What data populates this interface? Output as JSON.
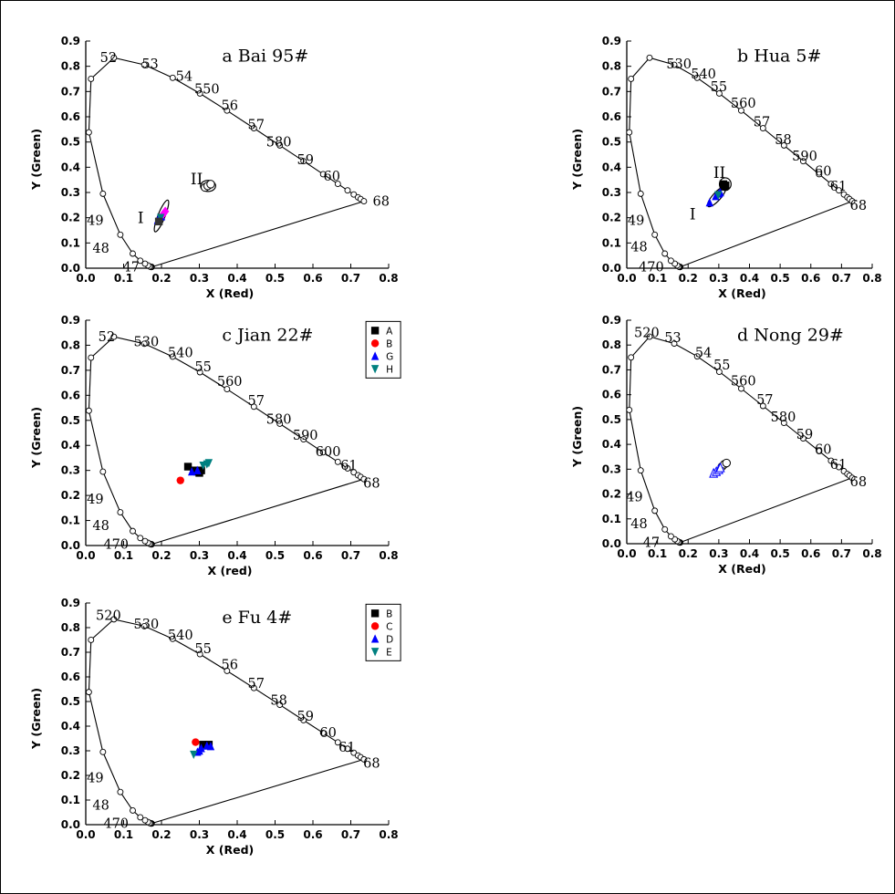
{
  "chart_data": [
    {
      "type": "scatter",
      "title": "a  Bai 95#",
      "xlabel": "X (Red)",
      "ylabel": "Y (Green)",
      "xlim": [
        0,
        0.8
      ],
      "ylim": [
        0,
        0.9
      ],
      "xticks": [
        "0.0",
        "0.1",
        "0.2",
        "0.3",
        "0.4",
        "0.5",
        "0.6",
        "0.7",
        "0.8"
      ],
      "yticks": [
        "0.0",
        "0.1",
        "0.2",
        "0.3",
        "0.4",
        "0.5",
        "0.6",
        "0.7",
        "0.8",
        "0.9"
      ],
      "wavelength_labels": [
        {
          "text": "52",
          "x": 0.06,
          "y": 0.835
        },
        {
          "text": "53",
          "x": 0.17,
          "y": 0.81
        },
        {
          "text": "54",
          "x": 0.26,
          "y": 0.76
        },
        {
          "text": "550",
          "x": 0.32,
          "y": 0.71
        },
        {
          "text": "56",
          "x": 0.38,
          "y": 0.645
        },
        {
          "text": "57",
          "x": 0.45,
          "y": 0.57
        },
        {
          "text": "580",
          "x": 0.51,
          "y": 0.5
        },
        {
          "text": "59",
          "x": 0.58,
          "y": 0.43
        },
        {
          "text": "60",
          "x": 0.65,
          "y": 0.365
        },
        {
          "text": "68",
          "x": 0.78,
          "y": 0.265
        },
        {
          "text": "49",
          "x": 0.025,
          "y": 0.19
        },
        {
          "text": "48",
          "x": 0.04,
          "y": 0.08
        },
        {
          "text": "47",
          "x": 0.12,
          "y": 0.005
        }
      ],
      "region_labels": [
        {
          "text": "I",
          "x": 0.145,
          "y": 0.2
        },
        {
          "text": "II",
          "x": 0.293,
          "y": 0.355
        }
      ],
      "ellipses": [
        {
          "cx": 0.2,
          "cy": 0.207,
          "rx": 0.045,
          "ry": 0.014,
          "angle": -68
        },
        {
          "cx": 0.323,
          "cy": 0.326,
          "rx": 0.02,
          "ry": 0.022,
          "angle": 0
        }
      ],
      "series": [
        {
          "marker": "circle-open",
          "color": "#000000",
          "points": [
            [
              0.315,
              0.32
            ],
            [
              0.322,
              0.326
            ],
            [
              0.33,
              0.333
            ]
          ]
        },
        {
          "marker": "triangle",
          "color": "#0000ff",
          "points": [
            [
              0.19,
              0.19
            ],
            [
              0.2,
              0.205
            ]
          ]
        },
        {
          "marker": "diamond",
          "color": "#ff00ff",
          "points": [
            [
              0.21,
              0.225
            ],
            [
              0.205,
              0.215
            ]
          ]
        },
        {
          "marker": "triangle-down",
          "color": "#008080",
          "points": [
            [
              0.198,
              0.2
            ]
          ]
        },
        {
          "marker": "square",
          "color": "#333333",
          "points": [
            [
              0.193,
              0.185
            ]
          ]
        }
      ]
    },
    {
      "type": "scatter",
      "title": "b  Hua 5#",
      "xlabel": "X (Red)",
      "ylabel": "Y (Green)",
      "xlim": [
        0,
        0.8
      ],
      "ylim": [
        0,
        0.9
      ],
      "xticks": [
        "0.0",
        "0.1",
        "0.2",
        "0.3",
        "0.4",
        "0.5",
        "0.6",
        "0.7",
        "0.8"
      ],
      "yticks": [
        "0.0",
        "0.1",
        "0.2",
        "0.3",
        "0.4",
        "0.5",
        "0.6",
        "0.7",
        "0.8",
        "0.9"
      ],
      "wavelength_labels": [
        {
          "text": "530",
          "x": 0.17,
          "y": 0.81
        },
        {
          "text": "540",
          "x": 0.25,
          "y": 0.77
        },
        {
          "text": "55",
          "x": 0.3,
          "y": 0.72
        },
        {
          "text": "560",
          "x": 0.38,
          "y": 0.655
        },
        {
          "text": "57",
          "x": 0.44,
          "y": 0.58
        },
        {
          "text": "58",
          "x": 0.51,
          "y": 0.51
        },
        {
          "text": "590",
          "x": 0.58,
          "y": 0.445
        },
        {
          "text": "60",
          "x": 0.64,
          "y": 0.385
        },
        {
          "text": "61",
          "x": 0.69,
          "y": 0.325
        },
        {
          "text": "68",
          "x": 0.755,
          "y": 0.25
        },
        {
          "text": "49",
          "x": 0.03,
          "y": 0.19
        },
        {
          "text": "48",
          "x": 0.04,
          "y": 0.085
        },
        {
          "text": "470",
          "x": 0.08,
          "y": 0.005
        }
      ],
      "region_labels": [
        {
          "text": "I",
          "x": 0.215,
          "y": 0.215
        },
        {
          "text": "II",
          "x": 0.302,
          "y": 0.38
        }
      ],
      "ellipses": [
        {
          "cx": 0.293,
          "cy": 0.283,
          "rx": 0.042,
          "ry": 0.016,
          "angle": -48
        },
        {
          "cx": 0.321,
          "cy": 0.333,
          "rx": 0.019,
          "ry": 0.025,
          "angle": 0
        }
      ],
      "series": [
        {
          "marker": "square",
          "color": "#000000",
          "points": [
            [
              0.315,
              0.333
            ],
            [
              0.322,
              0.328
            ],
            [
              0.317,
              0.323
            ]
          ]
        },
        {
          "marker": "triangle",
          "color": "#0000ff",
          "points": [
            [
              0.27,
              0.26
            ],
            [
              0.29,
              0.285
            ],
            [
              0.3,
              0.295
            ],
            [
              0.305,
              0.3
            ]
          ]
        },
        {
          "marker": "triangle-down",
          "color": "#008080",
          "points": [
            [
              0.298,
              0.29
            ]
          ]
        }
      ]
    },
    {
      "type": "scatter",
      "title": "c Jian 22#",
      "xlabel": "X (red)",
      "ylabel": "Y (Green)",
      "xlim": [
        0,
        0.8
      ],
      "ylim": [
        0,
        0.9
      ],
      "xticks": [
        "0.0",
        "0.1",
        "0.2",
        "0.3",
        "0.4",
        "0.5",
        "0.6",
        "0.7",
        "0.8"
      ],
      "yticks": [
        "0.0",
        "0.1",
        "0.2",
        "0.3",
        "0.4",
        "0.5",
        "0.6",
        "0.7",
        "0.8",
        "0.9"
      ],
      "legend": [
        {
          "label": "A",
          "marker": "square",
          "color": "#000000"
        },
        {
          "label": "B",
          "marker": "circle",
          "color": "#ff0000"
        },
        {
          "label": "G",
          "marker": "triangle",
          "color": "#0000ff"
        },
        {
          "label": "H",
          "marker": "triangle-down",
          "color": "#008080"
        }
      ],
      "wavelength_labels": [
        {
          "text": "52",
          "x": 0.055,
          "y": 0.835
        },
        {
          "text": "530",
          "x": 0.16,
          "y": 0.815
        },
        {
          "text": "540",
          "x": 0.25,
          "y": 0.77
        },
        {
          "text": "55",
          "x": 0.31,
          "y": 0.715
        },
        {
          "text": "560",
          "x": 0.38,
          "y": 0.655
        },
        {
          "text": "57",
          "x": 0.45,
          "y": 0.58
        },
        {
          "text": "580",
          "x": 0.51,
          "y": 0.505
        },
        {
          "text": "590",
          "x": 0.58,
          "y": 0.44
        },
        {
          "text": "600",
          "x": 0.64,
          "y": 0.375
        },
        {
          "text": "61",
          "x": 0.695,
          "y": 0.32
        },
        {
          "text": "68",
          "x": 0.755,
          "y": 0.25
        },
        {
          "text": "49",
          "x": 0.025,
          "y": 0.185
        },
        {
          "text": "48",
          "x": 0.04,
          "y": 0.08
        },
        {
          "text": "470",
          "x": 0.08,
          "y": 0.005
        }
      ],
      "region_labels": [],
      "ellipses": [],
      "series": [
        {
          "name": "A",
          "marker": "square",
          "color": "#000000",
          "points": [
            [
              0.27,
              0.315
            ],
            [
              0.285,
              0.3
            ],
            [
              0.295,
              0.295
            ],
            [
              0.3,
              0.29
            ],
            [
              0.305,
              0.3
            ]
          ]
        },
        {
          "name": "B",
          "marker": "circle",
          "color": "#ff0000",
          "points": [
            [
              0.25,
              0.26
            ]
          ]
        },
        {
          "name": "G",
          "marker": "triangle",
          "color": "#0000ff",
          "points": [
            [
              0.28,
              0.295
            ],
            [
              0.295,
              0.3
            ]
          ]
        },
        {
          "name": "H",
          "marker": "triangle-down",
          "color": "#008080",
          "points": [
            [
              0.31,
              0.32
            ],
            [
              0.32,
              0.325
            ],
            [
              0.325,
              0.33
            ]
          ]
        }
      ]
    },
    {
      "type": "scatter",
      "title": "d Nong 29#",
      "xlabel": "X (Red)",
      "ylabel": "Y (Green)",
      "xlim": [
        0,
        0.8
      ],
      "ylim": [
        0,
        0.9
      ],
      "xticks": [
        "0.0",
        "0.1",
        "0.2",
        "0.3",
        "0.4",
        "0.5",
        "0.6",
        "0.7",
        "0.8"
      ],
      "yticks": [
        "0.0",
        "0.1",
        "0.2",
        "0.3",
        "0.4",
        "0.5",
        "0.6",
        "0.7",
        "0.8",
        "0.9"
      ],
      "wavelength_labels": [
        {
          "text": "520",
          "x": 0.065,
          "y": 0.85
        },
        {
          "text": "53",
          "x": 0.15,
          "y": 0.83
        },
        {
          "text": "54",
          "x": 0.25,
          "y": 0.77
        },
        {
          "text": "55",
          "x": 0.31,
          "y": 0.72
        },
        {
          "text": "560",
          "x": 0.38,
          "y": 0.655
        },
        {
          "text": "57",
          "x": 0.45,
          "y": 0.58
        },
        {
          "text": "580",
          "x": 0.51,
          "y": 0.51
        },
        {
          "text": "59",
          "x": 0.58,
          "y": 0.44
        },
        {
          "text": "60",
          "x": 0.64,
          "y": 0.38
        },
        {
          "text": "61",
          "x": 0.69,
          "y": 0.32
        },
        {
          "text": "68",
          "x": 0.755,
          "y": 0.25
        },
        {
          "text": "49",
          "x": 0.025,
          "y": 0.19
        },
        {
          "text": "48",
          "x": 0.04,
          "y": 0.08
        },
        {
          "text": "47",
          "x": 0.08,
          "y": 0.005
        }
      ],
      "region_labels": [],
      "ellipses": [],
      "series": [
        {
          "marker": "circle-open",
          "color": "#000000",
          "points": [
            [
              0.31,
              0.31
            ],
            [
              0.318,
              0.32
            ],
            [
              0.325,
              0.325
            ]
          ]
        },
        {
          "marker": "triangle-open",
          "color": "#0000ff",
          "points": [
            [
              0.283,
              0.283
            ],
            [
              0.292,
              0.29
            ],
            [
              0.3,
              0.298
            ],
            [
              0.305,
              0.305
            ]
          ]
        }
      ]
    },
    {
      "type": "scatter",
      "title": "e  Fu 4#",
      "xlabel": "X (Red)",
      "ylabel": "Y (Green)",
      "xlim": [
        0,
        0.8
      ],
      "ylim": [
        0,
        0.9
      ],
      "xticks": [
        "0.0",
        "0.1",
        "0.2",
        "0.3",
        "0.4",
        "0.5",
        "0.6",
        "0.7",
        "0.8"
      ],
      "yticks": [
        "0.0",
        "0.1",
        "0.2",
        "0.3",
        "0.4",
        "0.5",
        "0.6",
        "0.7",
        "0.8",
        "0.9"
      ],
      "legend": [
        {
          "label": "B",
          "marker": "square",
          "color": "#000000"
        },
        {
          "label": "C",
          "marker": "circle",
          "color": "#ff0000"
        },
        {
          "label": "D",
          "marker": "triangle",
          "color": "#0000ff"
        },
        {
          "label": "E",
          "marker": "triangle-down",
          "color": "#008080"
        }
      ],
      "wavelength_labels": [
        {
          "text": "520",
          "x": 0.06,
          "y": 0.85
        },
        {
          "text": "530",
          "x": 0.16,
          "y": 0.815
        },
        {
          "text": "540",
          "x": 0.25,
          "y": 0.77
        },
        {
          "text": "55",
          "x": 0.31,
          "y": 0.715
        },
        {
          "text": "56",
          "x": 0.38,
          "y": 0.65
        },
        {
          "text": "57",
          "x": 0.45,
          "y": 0.575
        },
        {
          "text": "58",
          "x": 0.51,
          "y": 0.505
        },
        {
          "text": "59",
          "x": 0.58,
          "y": 0.44
        },
        {
          "text": "60",
          "x": 0.64,
          "y": 0.375
        },
        {
          "text": "61",
          "x": 0.69,
          "y": 0.315
        },
        {
          "text": "68",
          "x": 0.755,
          "y": 0.25
        },
        {
          "text": "49",
          "x": 0.025,
          "y": 0.19
        },
        {
          "text": "48",
          "x": 0.04,
          "y": 0.08
        },
        {
          "text": "470",
          "x": 0.08,
          "y": 0.005
        }
      ],
      "region_labels": [],
      "ellipses": [],
      "series": [
        {
          "name": "B",
          "marker": "square",
          "color": "#000000",
          "points": [
            [
              0.31,
              0.325
            ],
            [
              0.325,
              0.325
            ]
          ]
        },
        {
          "name": "C",
          "marker": "circle",
          "color": "#ff0000",
          "points": [
            [
              0.29,
              0.335
            ]
          ]
        },
        {
          "name": "D",
          "marker": "triangle",
          "color": "#0000ff",
          "points": [
            [
              0.295,
              0.295
            ],
            [
              0.305,
              0.31
            ],
            [
              0.32,
              0.32
            ],
            [
              0.33,
              0.318
            ],
            [
              0.3,
              0.3
            ]
          ]
        },
        {
          "name": "E",
          "marker": "triangle-down",
          "color": "#008080",
          "points": [
            [
              0.285,
              0.285
            ]
          ]
        }
      ]
    }
  ]
}
